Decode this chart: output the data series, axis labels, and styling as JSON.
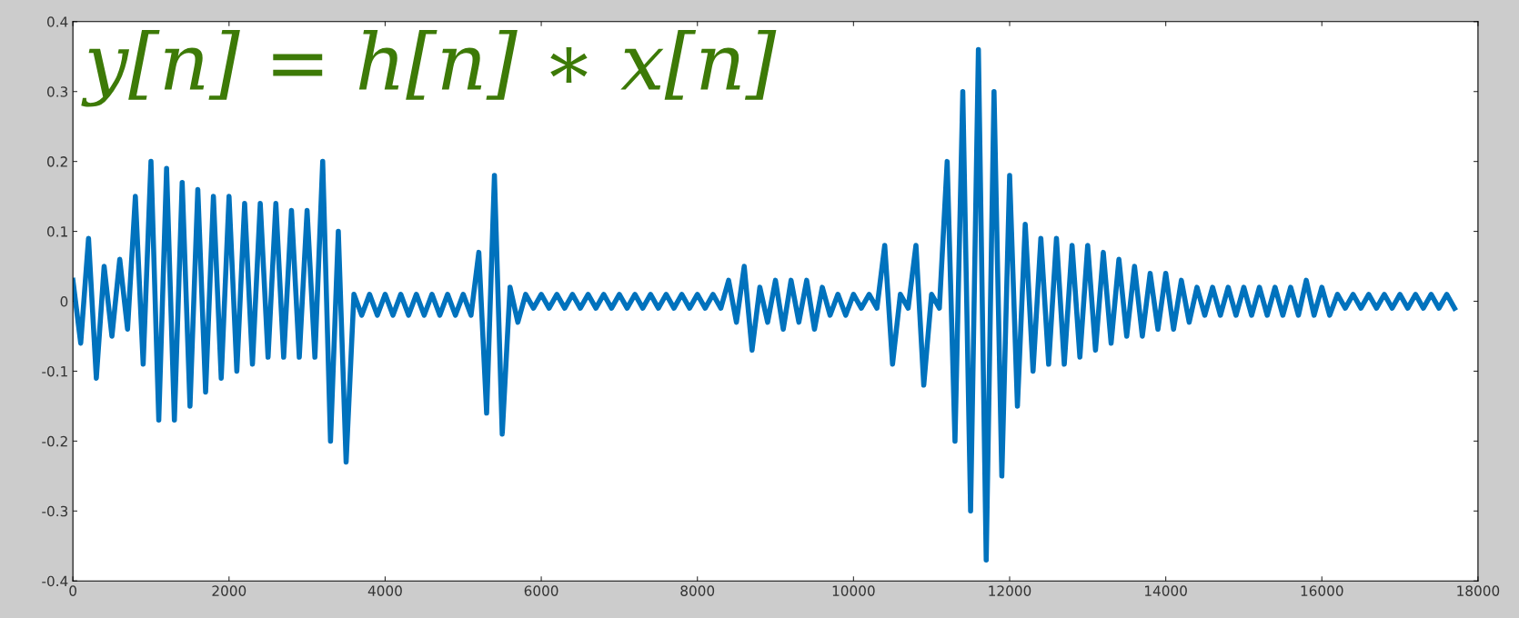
{
  "chart_data": {
    "type": "line",
    "series": [
      {
        "color": "#0072bd",
        "x": [
          0,
          100,
          200,
          300,
          400,
          500,
          600,
          700,
          800,
          900,
          1000,
          1100,
          1200,
          1300,
          1400,
          1500,
          1600,
          1700,
          1800,
          1900,
          2000,
          2100,
          2200,
          2300,
          2400,
          2500,
          2600,
          2700,
          2800,
          2900,
          3000,
          3100,
          3200,
          3300,
          3400,
          3500,
          3600,
          3700,
          3800,
          3900,
          4000,
          4100,
          4200,
          4300,
          4400,
          4500,
          4600,
          4700,
          4800,
          4900,
          5000,
          5100,
          5200,
          5300,
          5400,
          5500,
          5600,
          5700,
          5800,
          5900,
          6000,
          6100,
          6200,
          6300,
          6400,
          6500,
          6600,
          6700,
          6800,
          6900,
          7000,
          7100,
          7200,
          7300,
          7400,
          7500,
          7600,
          7700,
          7800,
          7900,
          8000,
          8100,
          8200,
          8300,
          8400,
          8500,
          8600,
          8700,
          8800,
          8900,
          9000,
          9100,
          9200,
          9300,
          9400,
          9500,
          9600,
          9700,
          9800,
          9900,
          10000,
          10100,
          10200,
          10300,
          10400,
          10500,
          10600,
          10700,
          10800,
          10900,
          11000,
          11100,
          11200,
          11300,
          11400,
          11500,
          11600,
          11700,
          11800,
          11900,
          12000,
          12100,
          12200,
          12300,
          12400,
          12500,
          12600,
          12700,
          12800,
          12900,
          13000,
          13100,
          13200,
          13300,
          13400,
          13500,
          13600,
          13700,
          13800,
          13900,
          14000,
          14100,
          14200,
          14300,
          14400,
          14500,
          14600,
          14700,
          14800,
          14900,
          15000,
          15100,
          15200,
          15300,
          15400,
          15500,
          15600,
          15700,
          15800,
          15900,
          16000,
          16100,
          16200,
          16300,
          16400,
          16500,
          16600,
          16700,
          16800,
          16900,
          17000,
          17100,
          17200,
          17300,
          17400,
          17500,
          17600,
          17700
        ],
        "values": [
          0.03,
          -0.06,
          0.09,
          -0.11,
          0.05,
          -0.05,
          0.06,
          -0.04,
          0.15,
          -0.09,
          0.2,
          -0.17,
          0.19,
          -0.17,
          0.17,
          -0.15,
          0.16,
          -0.13,
          0.15,
          -0.11,
          0.15,
          -0.1,
          0.14,
          -0.09,
          0.14,
          -0.08,
          0.14,
          -0.08,
          0.13,
          -0.08,
          0.13,
          -0.08,
          0.2,
          -0.2,
          0.1,
          -0.23,
          0.01,
          -0.02,
          0.01,
          -0.02,
          0.01,
          -0.02,
          0.01,
          -0.02,
          0.01,
          -0.02,
          0.01,
          -0.02,
          0.01,
          -0.02,
          0.01,
          -0.02,
          0.07,
          -0.16,
          0.18,
          -0.19,
          0.02,
          -0.03,
          0.01,
          -0.01,
          0.01,
          -0.01,
          0.01,
          -0.01,
          0.01,
          -0.01,
          0.01,
          -0.01,
          0.01,
          -0.01,
          0.01,
          -0.01,
          0.01,
          -0.01,
          0.01,
          -0.01,
          0.01,
          -0.01,
          0.01,
          -0.01,
          0.01,
          -0.01,
          0.01,
          -0.01,
          0.03,
          -0.03,
          0.05,
          -0.07,
          0.02,
          -0.03,
          0.03,
          -0.04,
          0.03,
          -0.03,
          0.03,
          -0.04,
          0.02,
          -0.02,
          0.01,
          -0.02,
          0.01,
          -0.01,
          0.01,
          -0.01,
          0.08,
          -0.09,
          0.01,
          -0.01,
          0.08,
          -0.12,
          0.01,
          -0.01,
          0.2,
          -0.2,
          0.3,
          -0.3,
          0.36,
          -0.37,
          0.3,
          -0.25,
          0.18,
          -0.15,
          0.11,
          -0.1,
          0.09,
          -0.09,
          0.09,
          -0.09,
          0.08,
          -0.08,
          0.08,
          -0.07,
          0.07,
          -0.06,
          0.06,
          -0.05,
          0.05,
          -0.05,
          0.04,
          -0.04,
          0.04,
          -0.04,
          0.03,
          -0.03,
          0.02,
          -0.02,
          0.02,
          -0.02,
          0.02,
          -0.02,
          0.02,
          -0.02,
          0.02,
          -0.02,
          0.02,
          -0.02,
          0.02,
          -0.02,
          0.03,
          -0.02,
          0.02,
          -0.02,
          0.01,
          -0.01,
          0.01,
          -0.01,
          0.01,
          -0.01,
          0.01,
          -0.01,
          0.01,
          -0.01,
          0.01,
          -0.01,
          0.01,
          -0.01,
          0.01,
          -0.01
        ]
      }
    ],
    "xlim": [
      0,
      18000
    ],
    "xticks": [
      0,
      2000,
      4000,
      6000,
      8000,
      10000,
      12000,
      14000,
      16000,
      18000
    ],
    "ylim": [
      -0.4,
      0.4
    ],
    "yticks": [
      -0.4,
      -0.3,
      -0.2,
      -0.1,
      0,
      0.1,
      0.2,
      0.3,
      0.4
    ],
    "annotations": [
      "y[n] = h[n] ∗ x[n]"
    ],
    "grid": false,
    "marker": "none",
    "line_style": "solid"
  }
}
